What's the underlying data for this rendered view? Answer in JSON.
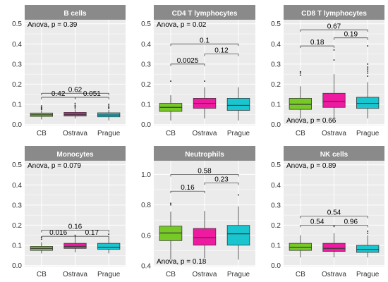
{
  "colors": {
    "strip_background": "#8a8a8a",
    "panel_background": "#ebebeb",
    "grid_major": "#ffffff",
    "CB": "#77c926",
    "Ostrava": "#ee1aa0",
    "Prague": "#19c6d0",
    "box_line": "#3a3a3a",
    "outlier": "#333333"
  },
  "chart_data": [
    {
      "type": "box",
      "title": "B cells",
      "xlabel": "",
      "ylabel": "",
      "categories": [
        "CB",
        "Ostrava",
        "Prague"
      ],
      "ylim": [
        -0.005,
        0.52
      ],
      "yticks": [
        0.0,
        0.1,
        0.2,
        0.3,
        0.4,
        0.5
      ],
      "grid": true,
      "boxes": [
        {
          "category": "CB",
          "min": 0.025,
          "q1": 0.04,
          "median": 0.048,
          "q3": 0.057,
          "max": 0.07,
          "outliers": [
            0.075,
            0.08,
            0.085,
            0.092
          ]
        },
        {
          "category": "Ostrava",
          "min": 0.03,
          "q1": 0.042,
          "median": 0.05,
          "q3": 0.06,
          "max": 0.075,
          "outliers": [
            0.082,
            0.088,
            0.095,
            0.105
          ]
        },
        {
          "category": "Prague",
          "min": 0.02,
          "q1": 0.038,
          "median": 0.047,
          "q3": 0.058,
          "max": 0.072,
          "outliers": [
            0.08,
            0.085,
            0.092,
            0.1
          ]
        }
      ],
      "comparisons": [
        {
          "from": "CB",
          "to": "Ostrava",
          "label": "0.42",
          "y": 0.135
        },
        {
          "from": "CB",
          "to": "Prague",
          "label": "0.62",
          "y": 0.155
        },
        {
          "from": "Ostrava",
          "to": "Prague",
          "label": "0.051",
          "y": 0.135
        }
      ],
      "anova": "Anova, p = 0.39",
      "anova_position": "top-left"
    },
    {
      "type": "box",
      "title": "CD4 T lymphocytes",
      "xlabel": "",
      "ylabel": "",
      "categories": [
        "CB",
        "Ostrava",
        "Prague"
      ],
      "ylim": [
        -0.005,
        0.52
      ],
      "yticks": [
        0.0,
        0.1,
        0.2,
        0.3,
        0.4,
        0.5
      ],
      "grid": true,
      "boxes": [
        {
          "category": "CB",
          "min": 0.02,
          "q1": 0.065,
          "median": 0.085,
          "q3": 0.105,
          "max": 0.145,
          "outliers": [
            0.215
          ]
        },
        {
          "category": "Ostrava",
          "min": 0.03,
          "q1": 0.08,
          "median": 0.105,
          "q3": 0.13,
          "max": 0.185,
          "outliers": [
            0.215
          ]
        },
        {
          "category": "Prague",
          "min": 0.02,
          "q1": 0.07,
          "median": 0.095,
          "q3": 0.13,
          "max": 0.185,
          "outliers": []
        }
      ],
      "comparisons": [
        {
          "from": "CB",
          "to": "Ostrava",
          "label": "0.0025",
          "y": 0.3
        },
        {
          "from": "CB",
          "to": "Prague",
          "label": "0.1",
          "y": 0.4
        },
        {
          "from": "Ostrava",
          "to": "Prague",
          "label": "0.12",
          "y": 0.35
        }
      ],
      "anova": "Anova, p = 0.02",
      "anova_position": "top-left"
    },
    {
      "type": "box",
      "title": "CD8 T lymphocytes",
      "xlabel": "",
      "ylabel": "",
      "categories": [
        "CB",
        "Ostrava",
        "Prague"
      ],
      "ylim": [
        -0.005,
        0.52
      ],
      "yticks": [
        0.0,
        0.1,
        0.2,
        0.3,
        0.4,
        0.5
      ],
      "grid": true,
      "boxes": [
        {
          "category": "CB",
          "min": 0.03,
          "q1": 0.075,
          "median": 0.1,
          "q3": 0.13,
          "max": 0.19,
          "outliers": [
            0.245,
            0.255,
            0.262
          ]
        },
        {
          "category": "Ostrava",
          "min": 0.03,
          "q1": 0.085,
          "median": 0.115,
          "q3": 0.155,
          "max": 0.25,
          "outliers": [
            0.32,
            0.37
          ]
        },
        {
          "category": "Prague",
          "min": 0.03,
          "q1": 0.08,
          "median": 0.105,
          "q3": 0.135,
          "max": 0.21,
          "outliers": [
            0.24,
            0.255,
            0.265,
            0.275,
            0.285,
            0.3,
            0.39
          ]
        }
      ],
      "comparisons": [
        {
          "from": "CB",
          "to": "Ostrava",
          "label": "0.18",
          "y": 0.39
        },
        {
          "from": "CB",
          "to": "Prague",
          "label": "0.67",
          "y": 0.47
        },
        {
          "from": "Ostrava",
          "to": "Prague",
          "label": "0.19",
          "y": 0.43
        }
      ],
      "anova": "Anova, p = 0.66",
      "anova_position": "bottom-left"
    },
    {
      "type": "box",
      "title": "Monocytes",
      "xlabel": "",
      "ylabel": "",
      "categories": [
        "CB",
        "Ostrava",
        "Prague"
      ],
      "ylim": [
        -0.005,
        0.52
      ],
      "yticks": [
        0.0,
        0.1,
        0.2,
        0.3,
        0.4,
        0.5
      ],
      "grid": true,
      "boxes": [
        {
          "category": "CB",
          "min": 0.06,
          "q1": 0.075,
          "median": 0.085,
          "q3": 0.095,
          "max": 0.115,
          "outliers": [
            0.13,
            0.14
          ]
        },
        {
          "category": "Ostrava",
          "min": 0.065,
          "q1": 0.085,
          "median": 0.095,
          "q3": 0.11,
          "max": 0.135,
          "outliers": [
            0.15
          ]
        },
        {
          "category": "Prague",
          "min": 0.06,
          "q1": 0.08,
          "median": 0.09,
          "q3": 0.11,
          "max": 0.14,
          "outliers": [
            0.155
          ]
        }
      ],
      "comparisons": [
        {
          "from": "CB",
          "to": "Ostrava",
          "label": "0.016",
          "y": 0.145
        },
        {
          "from": "CB",
          "to": "Prague",
          "label": "0.16",
          "y": 0.175
        },
        {
          "from": "Ostrava",
          "to": "Prague",
          "label": "0.17",
          "y": 0.145
        }
      ],
      "anova": "Anova, p = 0.079",
      "anova_position": "top-left"
    },
    {
      "type": "box",
      "title": "Neutrophils",
      "xlabel": "",
      "ylabel": "",
      "categories": [
        "CB",
        "Ostrava",
        "Prague"
      ],
      "ylim": [
        0.395,
        1.09
      ],
      "yticks": [
        0.4,
        0.6,
        0.8,
        1.0
      ],
      "grid": true,
      "boxes": [
        {
          "category": "CB",
          "min": 0.44,
          "q1": 0.565,
          "median": 0.615,
          "q3": 0.66,
          "max": 0.755,
          "outliers": [
            0.8,
            0.81
          ]
        },
        {
          "category": "Ostrava",
          "min": 0.45,
          "q1": 0.535,
          "median": 0.585,
          "q3": 0.645,
          "max": 0.76,
          "outliers": []
        },
        {
          "category": "Prague",
          "min": 0.44,
          "q1": 0.535,
          "median": 0.61,
          "q3": 0.665,
          "max": 0.79,
          "outliers": [
            0.865
          ]
        }
      ],
      "comparisons": [
        {
          "from": "CB",
          "to": "Ostrava",
          "label": "0.16",
          "y": 0.89
        },
        {
          "from": "CB",
          "to": "Prague",
          "label": "0.58",
          "y": 1.0
        },
        {
          "from": "Ostrava",
          "to": "Prague",
          "label": "0.23",
          "y": 0.945
        }
      ],
      "anova": "Anova, p = 0.18",
      "anova_position": "bottom-left"
    },
    {
      "type": "box",
      "title": "NK cells",
      "xlabel": "",
      "ylabel": "",
      "categories": [
        "CB",
        "Ostrava",
        "Prague"
      ],
      "ylim": [
        -0.005,
        0.52
      ],
      "yticks": [
        0.0,
        0.1,
        0.2,
        0.3,
        0.4,
        0.5
      ],
      "grid": true,
      "boxes": [
        {
          "category": "CB",
          "min": 0.04,
          "q1": 0.075,
          "median": 0.09,
          "q3": 0.11,
          "max": 0.15,
          "outliers": []
        },
        {
          "category": "Ostrava",
          "min": 0.04,
          "q1": 0.07,
          "median": 0.085,
          "q3": 0.11,
          "max": 0.16,
          "outliers": [
            0.195
          ]
        },
        {
          "category": "Prague",
          "min": 0.04,
          "q1": 0.065,
          "median": 0.08,
          "q3": 0.1,
          "max": 0.15,
          "outliers": [
            0.16,
            0.17
          ]
        }
      ],
      "comparisons": [
        {
          "from": "CB",
          "to": "Ostrava",
          "label": "0.54",
          "y": 0.2
        },
        {
          "from": "CB",
          "to": "Prague",
          "label": "0.54",
          "y": 0.245
        },
        {
          "from": "Ostrava",
          "to": "Prague",
          "label": "0.96",
          "y": 0.2
        }
      ],
      "anova": "Anova, p = 0.89",
      "anova_position": "top-left"
    }
  ]
}
